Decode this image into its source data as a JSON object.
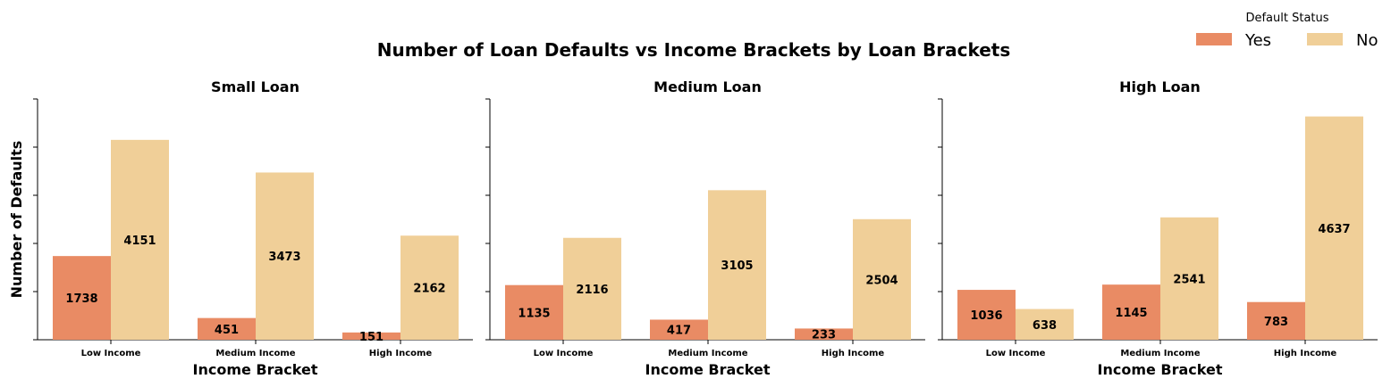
{
  "chart_data": {
    "type": "bar",
    "title": "Number of Loan Defaults vs Income Brackets by Loan Brackets",
    "ylabel": "Number of Defaults",
    "legend": {
      "title": "Default Status",
      "placement": "top-right",
      "entries": [
        {
          "name": "Yes",
          "color": "#E98B64"
        },
        {
          "name": "No",
          "color": "#F0CF98"
        }
      ]
    },
    "ylim": [
      0,
      5000
    ],
    "y_tick_values": [
      0,
      1000,
      2000,
      3000,
      4000,
      5000
    ],
    "y_tick_labels_visible": false,
    "grid": false,
    "panels": [
      {
        "title": "Small Loan",
        "xlabel": "Income Bracket",
        "categories": [
          "Low Income",
          "Medium Income",
          "High Income"
        ],
        "series": [
          {
            "name": "Yes",
            "values": [
              1738,
              451,
              151
            ]
          },
          {
            "name": "No",
            "values": [
              4151,
              3473,
              2162
            ]
          }
        ]
      },
      {
        "title": "Medium Loan",
        "xlabel": "Income Bracket",
        "categories": [
          "Low Income",
          "Medium Income",
          "High Income"
        ],
        "series": [
          {
            "name": "Yes",
            "values": [
              1135,
              417,
              233
            ]
          },
          {
            "name": "No",
            "values": [
              2116,
              3105,
              2504
            ]
          }
        ]
      },
      {
        "title": "High Loan",
        "xlabel": "Income Bracket",
        "categories": [
          "Low Income",
          "Medium Income",
          "High Income"
        ],
        "series": [
          {
            "name": "Yes",
            "values": [
              1036,
              1145,
              783
            ]
          },
          {
            "name": "No",
            "values": [
              638,
              2541,
              4637
            ]
          }
        ]
      }
    ]
  }
}
